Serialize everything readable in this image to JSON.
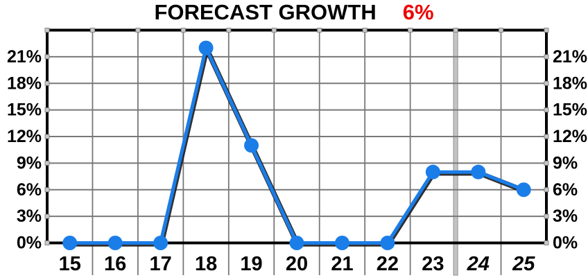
{
  "title": {
    "text": "FORECAST GROWTH",
    "value": "6%",
    "text_color": "#000000",
    "value_color": "#ee0000"
  },
  "chart_data": {
    "type": "line",
    "categories": [
      "15",
      "16",
      "17",
      "18",
      "19",
      "20",
      "21",
      "22",
      "23",
      "24",
      "25"
    ],
    "values": [
      0,
      0,
      0,
      22,
      11,
      0,
      0,
      0,
      8,
      8,
      6
    ],
    "italic_categories": [
      "24",
      "25"
    ],
    "series_name": "forecast-growth",
    "title": "FORECAST GROWTH 6%",
    "xlabel": "",
    "ylabel": "",
    "ylim": [
      0,
      24
    ],
    "grid_step": 3,
    "y_tick_labels": [
      "21%",
      "18%",
      "15%",
      "12%",
      "9%",
      "6%",
      "3%",
      "0%"
    ],
    "y_tick_values": [
      21,
      18,
      15,
      12,
      9,
      6,
      3,
      0
    ],
    "y_axis_labels_on_both_sides": true,
    "grid": "on",
    "divider_after_category": "23",
    "line_color": "#1b7de8",
    "marker_color": "#1b7de8",
    "grid_color": "#787878",
    "divider_color": "#c4c4c4",
    "frame_color": "#000000",
    "tick_square_color": "#c8c8c8"
  }
}
